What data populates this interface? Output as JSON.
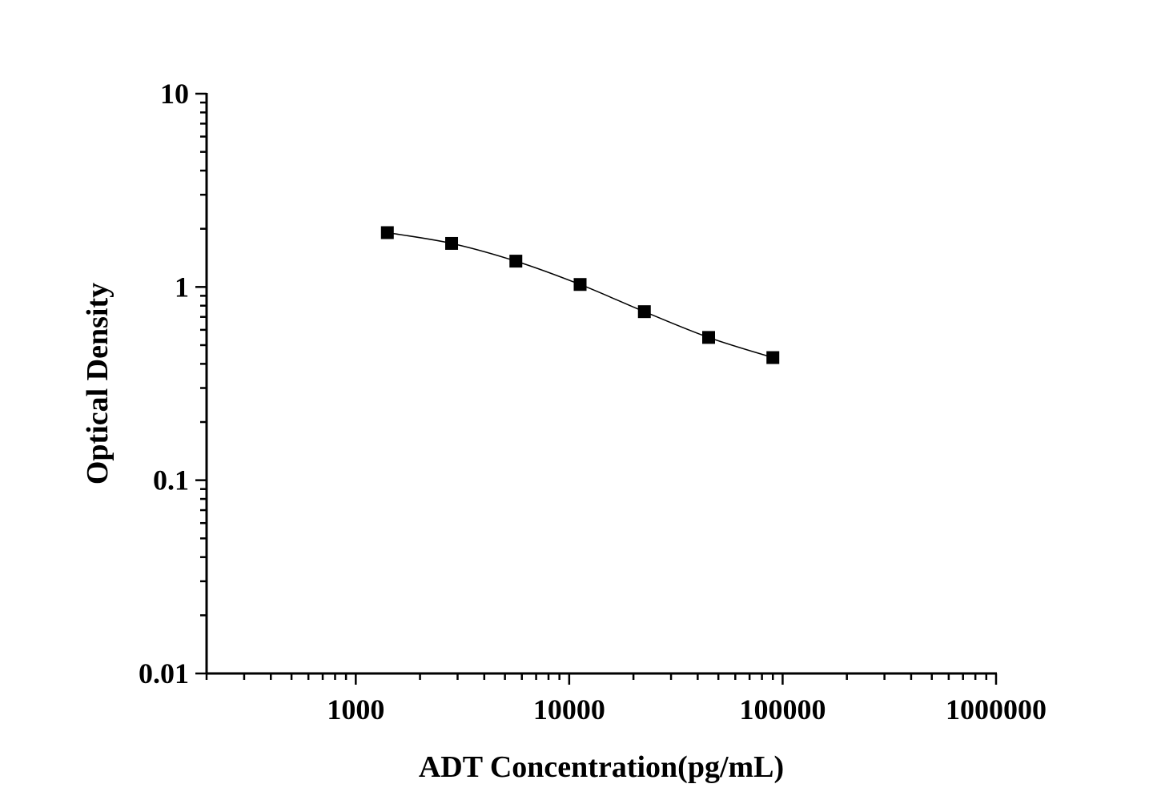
{
  "chart_data": {
    "type": "line",
    "title": "",
    "xlabel": "ADT Concentration(pg/mL)",
    "ylabel": "Optical Density",
    "x_scale": "log",
    "y_scale": "log",
    "xlim": [
      200,
      1000000
    ],
    "ylim": [
      0.01,
      10
    ],
    "x_ticks": [
      1000,
      10000,
      100000,
      1000000
    ],
    "x_tick_labels": [
      "1000",
      "10000",
      "100000",
      "1000000"
    ],
    "y_ticks": [
      0.01,
      0.1,
      1,
      10
    ],
    "y_tick_labels": [
      "0.01",
      "0.1",
      "1",
      "10"
    ],
    "grid": false,
    "marker": "square",
    "color": "#000000",
    "series": [
      {
        "x": [
          1406.25,
          2812.5,
          5625,
          11250,
          22500,
          45000,
          90000
        ],
        "y": [
          1.91,
          1.68,
          1.36,
          1.03,
          0.745,
          0.548,
          0.431
        ]
      }
    ]
  }
}
